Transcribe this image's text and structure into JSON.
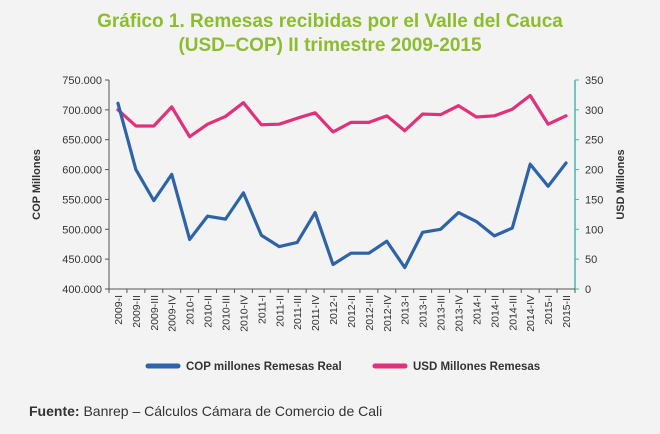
{
  "title_line1": "Gráfico 1. Remesas recibidas por el Valle del Cauca",
  "title_line2": "(USD–COP) II trimestre 2009-2015",
  "source_label": "Fuente:",
  "source_text": "Banrep – Cálculos Cámara de Comercio de Cali",
  "colors": {
    "cop": "#2e63a8",
    "usd": "#e0317a",
    "right_axis": "#49b6ad",
    "title": "#8dbd2c"
  },
  "chart_data": {
    "type": "line",
    "ylabel": "COP Millones",
    "y2label": "USD Millones",
    "ylim": [
      400000,
      750000
    ],
    "y2lim": [
      0,
      350
    ],
    "yticks": [
      "400.000",
      "450.000",
      "500.000",
      "550.000",
      "600.000",
      "650.000",
      "700.000",
      "750.000"
    ],
    "y2ticks": [
      "0",
      "50",
      "100",
      "150",
      "200",
      "250",
      "300",
      "350"
    ],
    "categories": [
      "2009-I",
      "2009-II",
      "2009-III",
      "2009-IV",
      "2010-I",
      "2010-II",
      "2010-III",
      "2010-IV",
      "2011-I",
      "2011-II",
      "2011-III",
      "2011-IV",
      "2012-I",
      "2012-II",
      "2012-III",
      "2012-IV",
      "2013-I",
      "2013-II",
      "2013-III",
      "2013-IV",
      "2014-I",
      "2014-II",
      "2014-III",
      "2014-IV",
      "2015-I",
      "2015-II"
    ],
    "series": [
      {
        "name": "COP millones Remesas Real",
        "axis": "left",
        "values": [
          711000,
          600000,
          548000,
          592000,
          483000,
          522000,
          517000,
          561000,
          490000,
          471000,
          478000,
          528000,
          441000,
          460000,
          460000,
          480000,
          436000,
          495000,
          500000,
          528000,
          513000,
          489000,
          502000,
          609000,
          572000,
          611000
        ]
      },
      {
        "name": "USD Millones Remesas",
        "axis": "right",
        "values": [
          300,
          273,
          273,
          305,
          255,
          276,
          289,
          312,
          275,
          276,
          286,
          295,
          263,
          279,
          279,
          290,
          265,
          293,
          292,
          307,
          288,
          290,
          301,
          324,
          276,
          290
        ]
      }
    ],
    "legend": "bottom"
  }
}
